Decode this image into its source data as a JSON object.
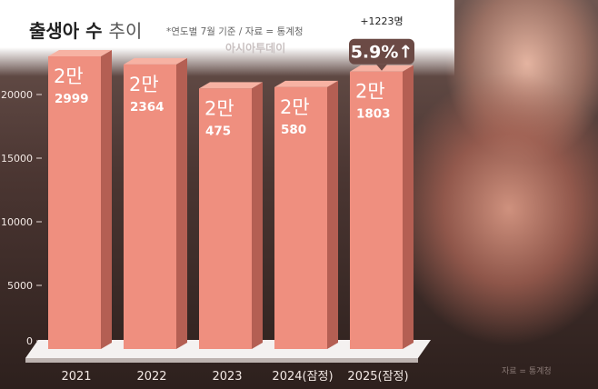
{
  "chart_data": {
    "type": "bar",
    "title": "출생아 수",
    "title_suffix": "추이",
    "note": "*연도별 7월 기준 / 자료 = 통계청",
    "watermark": "아시아투데이",
    "source_bottom": "자료 = 통계청",
    "categories": [
      "2021",
      "2022",
      "2023",
      "2024(잠정)",
      "2025(잠정)"
    ],
    "values": [
      22999,
      22364,
      20475,
      20580,
      21803
    ],
    "label_main": [
      "2만",
      "2만",
      "2만",
      "2만",
      "2만"
    ],
    "label_sub": [
      "2999",
      "2364",
      "475",
      "580",
      "1803"
    ],
    "ylim": [
      0,
      22999
    ],
    "yticks": [
      0,
      5000,
      10000,
      15000,
      20000
    ],
    "ytick_labels": [
      "0",
      "5000",
      "10000",
      "15000",
      "20000"
    ],
    "annotation": {
      "change": "+1223명",
      "percent": "5.9%↑",
      "bar_index": 4
    },
    "colors": {
      "bar_front": "#ef8f7f",
      "bar_side": "#b45f53",
      "bar_top": "#f7b2a3",
      "badge": "#6b4a45"
    }
  }
}
